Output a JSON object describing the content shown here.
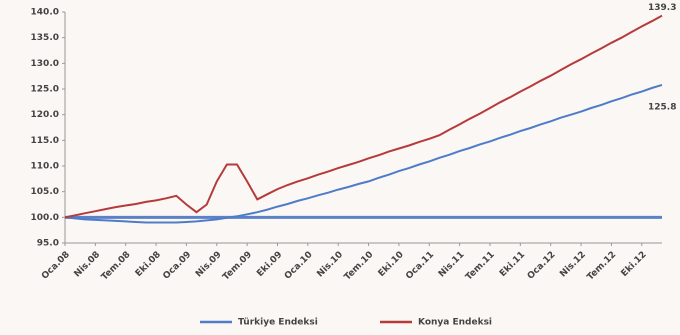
{
  "chart_data": {
    "type": "line",
    "categories": [
      "Oca.08",
      null,
      null,
      "Nis.08",
      null,
      null,
      "Tem.08",
      null,
      null,
      "Eki.08",
      null,
      null,
      "Oca.09",
      null,
      null,
      "Nis.09",
      null,
      null,
      "Tem.09",
      null,
      null,
      "Eki.09",
      null,
      null,
      "Oca.10",
      null,
      null,
      "Nis.10",
      null,
      null,
      "Tem.10",
      null,
      null,
      "Eki.10",
      null,
      null,
      "Oca.11",
      null,
      null,
      "Nis.11",
      null,
      null,
      "Tem.11",
      null,
      null,
      "Eki.11",
      null,
      null,
      "Oca.12",
      null,
      null,
      "Nis.12",
      null,
      null,
      "Tem.12",
      null,
      null,
      "Eki.12",
      null,
      null
    ],
    "series": [
      {
        "name": "Türkiye Endeksi",
        "color": "#4f7cc8",
        "values": [
          100,
          99.8,
          99.6,
          99.5,
          99.4,
          99.3,
          99.2,
          99.1,
          99.0,
          99.0,
          99.0,
          99.0,
          99.1,
          99.2,
          99.4,
          99.6,
          99.9,
          100.2,
          100.6,
          101.0,
          101.5,
          102.1,
          102.6,
          103.2,
          103.7,
          104.3,
          104.8,
          105.4,
          105.9,
          106.5,
          107.0,
          107.7,
          108.3,
          109.0,
          109.6,
          110.3,
          110.9,
          111.6,
          112.2,
          112.9,
          113.5,
          114.2,
          114.8,
          115.5,
          116.1,
          116.8,
          117.4,
          118.1,
          118.7,
          119.4,
          120.0,
          120.6,
          121.3,
          121.9,
          122.6,
          123.2,
          123.9,
          124.5,
          125.2,
          125.8
        ],
        "value_labels": [
          null,
          null,
          null,
          null,
          null,
          null,
          null,
          null,
          null,
          null,
          null,
          null,
          null,
          null,
          null,
          null,
          null,
          null,
          null,
          null,
          null,
          null,
          null,
          null,
          null,
          null,
          null,
          null,
          null,
          null,
          null,
          null,
          null,
          null,
          null,
          null,
          null,
          null,
          null,
          null,
          null,
          null,
          null,
          null,
          null,
          null,
          null,
          null,
          null,
          null,
          null,
          null,
          null,
          null,
          null,
          null,
          null,
          null,
          null,
          "125.8"
        ]
      },
      {
        "name": "Konya Endeksi",
        "color": "#b53b3b",
        "values": [
          100,
          100.4,
          100.8,
          101.2,
          101.6,
          102,
          102.3,
          102.6,
          103,
          103.3,
          103.7,
          104.2,
          102.5,
          101,
          102.5,
          107,
          110.3,
          110.3,
          107,
          103.5,
          104.5,
          105.5,
          106.3,
          107,
          107.6,
          108.3,
          108.9,
          109.6,
          110.2,
          110.8,
          111.5,
          112.1,
          112.8,
          113.4,
          114.0,
          114.7,
          115.3,
          116.0,
          117.1,
          118.1,
          119.2,
          120.2,
          121.3,
          122.4,
          123.4,
          124.5,
          125.5,
          126.6,
          127.6,
          128.7,
          129.8,
          130.8,
          131.9,
          132.9,
          134.0,
          135.0,
          136.1,
          137.2,
          138.2,
          139.3
        ],
        "value_labels": [
          null,
          null,
          null,
          null,
          null,
          null,
          null,
          null,
          null,
          null,
          null,
          null,
          null,
          null,
          null,
          null,
          null,
          null,
          null,
          null,
          null,
          null,
          null,
          null,
          null,
          null,
          null,
          null,
          null,
          null,
          null,
          null,
          null,
          null,
          null,
          null,
          null,
          null,
          null,
          null,
          null,
          null,
          null,
          null,
          null,
          null,
          null,
          null,
          null,
          null,
          null,
          null,
          null,
          null,
          null,
          null,
          null,
          null,
          null,
          "139.3"
        ]
      }
    ],
    "reference_line": {
      "value": 100,
      "color": "#5b82c9"
    },
    "ylim": [
      95,
      140
    ],
    "yticks": [
      {
        "value": 95,
        "label": "95.0"
      },
      {
        "value": 100,
        "label": "100.0"
      },
      {
        "value": 105,
        "label": "105.0"
      },
      {
        "value": 110,
        "label": "110.0"
      },
      {
        "value": 115,
        "label": "115.0"
      },
      {
        "value": 120,
        "label": "120.0"
      },
      {
        "value": 125,
        "label": "125.0"
      },
      {
        "value": 130,
        "label": "130.0"
      },
      {
        "value": 135,
        "label": "135.0"
      },
      {
        "value": 140,
        "label": "140.0"
      }
    ],
    "legend": "bottom"
  }
}
